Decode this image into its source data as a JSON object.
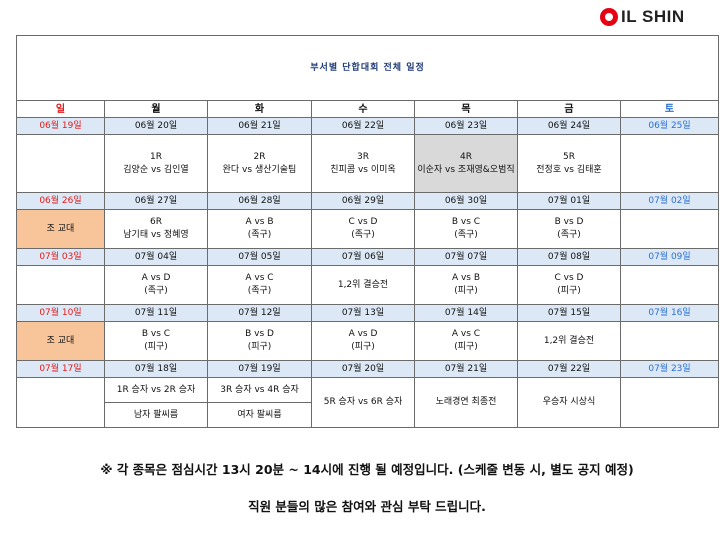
{
  "logo": {
    "text": "IL SHIN"
  },
  "title": "부서별 단합대회 전체 일정",
  "days": [
    "일",
    "월",
    "화",
    "수",
    "목",
    "금",
    "토"
  ],
  "weeks": [
    {
      "dates": [
        "06월 19일",
        "06월 20일",
        "06월 21일",
        "06월 22일",
        "06월 23일",
        "06월 24일",
        "06월 25일"
      ],
      "cells": [
        "",
        "1R\n김양순 vs 김인열",
        "2R\n완다 vs 생산기술팀",
        "3R\n친피콤 vs 이미옥",
        "4R\n이순자 vs 조재영&오범직",
        "5R\n전정호 vs 김태훈",
        ""
      ]
    },
    {
      "dates": [
        "06월 26일",
        "06월 27일",
        "06월 28일",
        "06월 29일",
        "06월 30일",
        "07월 01일",
        "07월 02일"
      ],
      "cells": [
        "조 교대",
        "6R\n남기태 vs 정혜영",
        "A vs B\n(족구)",
        "C vs D\n(족구)",
        "B vs C\n(족구)",
        "B vs D\n(족구)",
        ""
      ]
    },
    {
      "dates": [
        "07월 03일",
        "07월 04일",
        "07월 05일",
        "07월 06일",
        "07월 07일",
        "07월 08일",
        "07월 09일"
      ],
      "cells": [
        "",
        "A vs D\n(족구)",
        "A vs C\n(족구)",
        "1,2위 결승전",
        "A vs B\n(피구)",
        "C vs D\n(피구)",
        ""
      ]
    },
    {
      "dates": [
        "07월 10일",
        "07월 11일",
        "07월 12일",
        "07월 13일",
        "07월 14일",
        "07월 15일",
        "07월 16일"
      ],
      "cells": [
        "조 교대",
        "B vs C\n(피구)",
        "B vs D\n(피구)",
        "A vs D\n(피구)",
        "A vs C\n(피구)",
        "1,2위 결승전",
        ""
      ]
    },
    {
      "dates": [
        "07월 17일",
        "07월 18일",
        "07월 19일",
        "07월 20일",
        "07월 21일",
        "07월 22일",
        "07월 23일"
      ],
      "mon": [
        "1R 승자 vs 2R 승자",
        "남자 팔씨름"
      ],
      "tue": [
        "3R 승자 vs 4R 승자",
        "여자 팔씨름"
      ],
      "wed": "5R 승자 vs 6R 승자",
      "thu": "노래경연 최종전",
      "fri": "우승자 시상식"
    }
  ],
  "note": "※ 각 종목은 점심시간 13시 20분 ~ 14시에 진행 될 예정입니다. (스케줄 변동 시, 별도 공지 예정)",
  "thanks": "직원 분들의 많은 참여와 관심 부탁 드립니다.",
  "colors": {
    "title": "#1f3a78",
    "sunday": "#e01b1b",
    "saturday": "#2a6fd6",
    "date_row": "#dce8f5",
    "shift_change": "#f8c49a",
    "highlight": "#d9d9d9",
    "logo": "#e60012"
  }
}
